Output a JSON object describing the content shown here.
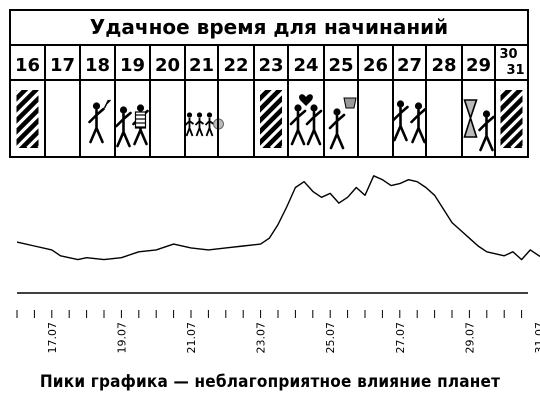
{
  "calendar": {
    "title": "Удачное время для начинаний",
    "days": [
      {
        "label": "16",
        "icon": "hatched-box-icon"
      },
      {
        "label": "17",
        "icon": "empty"
      },
      {
        "label": "18",
        "icon": "figure-cheering-icon"
      },
      {
        "label": "19",
        "icon": "figures-celebrating-icon"
      },
      {
        "label": "20",
        "icon": "empty"
      },
      {
        "label": "21",
        "icon": "figures-walking-icon"
      },
      {
        "label": "22",
        "icon": "empty"
      },
      {
        "label": "23",
        "icon": "hatched-box-icon"
      },
      {
        "label": "24",
        "icon": "figures-love-icon"
      },
      {
        "label": "25",
        "icon": "figure-trophy-icon"
      },
      {
        "label": "26",
        "icon": "empty"
      },
      {
        "label": "27",
        "icon": "figures-handshake-icon"
      },
      {
        "label": "28",
        "icon": "empty"
      },
      {
        "label": "29",
        "icon": "figure-hourglass-icon"
      },
      {
        "label": "30\n31",
        "icon": "hatched-box-icon"
      }
    ]
  },
  "chart_data": {
    "type": "line",
    "title": "",
    "xlabel": "",
    "ylabel": "",
    "x_ticks": [
      "17.07",
      "19.07",
      "21.07",
      "23.07",
      "25.07",
      "27.07",
      "29.07",
      "31.07"
    ],
    "x_range": [
      "16.07",
      "31.07"
    ],
    "y_range": [
      0,
      100
    ],
    "grid": false,
    "series": [
      {
        "name": "",
        "points": [
          [
            "16.07 00:00",
            22
          ],
          [
            "16.07 12:00",
            20
          ],
          [
            "17.07 00:00",
            18
          ],
          [
            "17.07 06:00",
            15
          ],
          [
            "17.07 12:00",
            14
          ],
          [
            "17.07 18:00",
            13
          ],
          [
            "18.07 00:00",
            14
          ],
          [
            "18.07 12:00",
            13
          ],
          [
            "19.07 00:00",
            14
          ],
          [
            "19.07 12:00",
            17
          ],
          [
            "20.07 00:00",
            18
          ],
          [
            "20.07 12:00",
            21
          ],
          [
            "21.07 00:00",
            19
          ],
          [
            "21.07 12:00",
            18
          ],
          [
            "22.07 00:00",
            19
          ],
          [
            "22.07 12:00",
            20
          ],
          [
            "23.07 00:00",
            21
          ],
          [
            "23.07 06:00",
            24
          ],
          [
            "23.07 12:00",
            31
          ],
          [
            "23.07 18:00",
            40
          ],
          [
            "24.07 00:00",
            50
          ],
          [
            "24.07 06:00",
            53
          ],
          [
            "24.07 12:00",
            48
          ],
          [
            "24.07 18:00",
            45
          ],
          [
            "25.07 00:00",
            47
          ],
          [
            "25.07 06:00",
            42
          ],
          [
            "25.07 12:00",
            45
          ],
          [
            "25.07 18:00",
            50
          ],
          [
            "26.07 00:00",
            46
          ],
          [
            "26.07 06:00",
            56
          ],
          [
            "26.07 12:00",
            54
          ],
          [
            "26.07 18:00",
            51
          ],
          [
            "27.07 00:00",
            52
          ],
          [
            "27.07 06:00",
            54
          ],
          [
            "27.07 12:00",
            53
          ],
          [
            "27.07 18:00",
            50
          ],
          [
            "28.07 00:00",
            46
          ],
          [
            "28.07 06:00",
            39
          ],
          [
            "28.07 12:00",
            32
          ],
          [
            "28.07 18:00",
            28
          ],
          [
            "29.07 00:00",
            24
          ],
          [
            "29.07 06:00",
            20
          ],
          [
            "29.07 12:00",
            17
          ],
          [
            "29.07 18:00",
            16
          ],
          [
            "30.07 00:00",
            15
          ],
          [
            "30.07 06:00",
            17
          ],
          [
            "30.07 12:00",
            13
          ],
          [
            "30.07 18:00",
            18
          ],
          [
            "31.07 00:00",
            15
          ],
          [
            "31.07 06:00",
            13
          ],
          [
            "31.07 12:00",
            12
          ],
          [
            "31.07 18:00",
            20
          ]
        ]
      }
    ],
    "caption": "Пики графика — неблагоприятное влияние планет"
  }
}
